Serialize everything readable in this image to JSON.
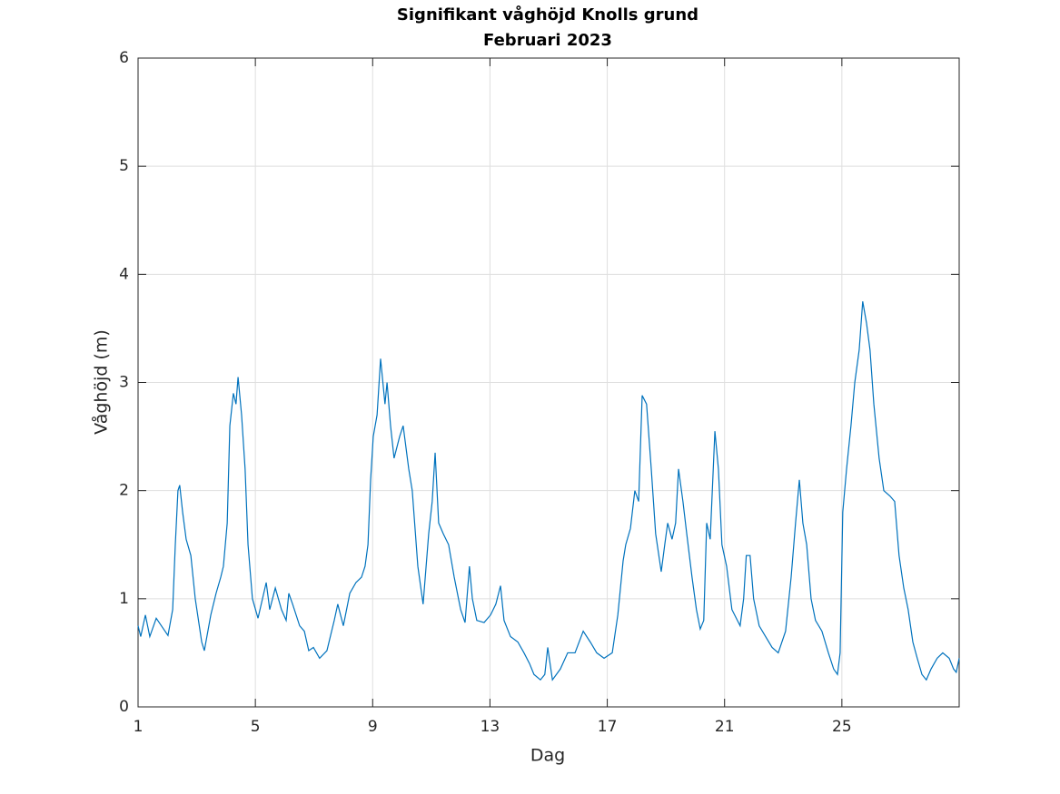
{
  "chart_data": {
    "type": "line",
    "title": "Signifikant våghöjd Knolls grund",
    "subtitle": "Februari 2023",
    "x_label": "Dag",
    "y_label": "Våghöjd (m)",
    "color": "#0072bd",
    "grid": true,
    "xlim": [
      1,
      29
    ],
    "xticks": [
      1,
      5,
      9,
      13,
      17,
      21,
      25
    ],
    "ylim": [
      0,
      6
    ],
    "yticks": [
      0,
      1,
      2,
      3,
      4,
      5,
      6
    ],
    "x": [
      1.0,
      1.09,
      1.25,
      1.4,
      1.62,
      1.87,
      2.02,
      2.18,
      2.27,
      2.36,
      2.42,
      2.52,
      2.64,
      2.8,
      2.95,
      3.17,
      3.26,
      3.48,
      3.66,
      3.82,
      3.91,
      4.04,
      4.13,
      4.25,
      4.34,
      4.41,
      4.53,
      4.65,
      4.75,
      4.9,
      5.09,
      5.37,
      5.49,
      5.68,
      5.89,
      6.05,
      6.14,
      6.27,
      6.51,
      6.67,
      6.82,
      6.98,
      7.19,
      7.44,
      7.69,
      7.81,
      8.0,
      8.22,
      8.43,
      8.62,
      8.74,
      8.84,
      8.93,
      9.02,
      9.15,
      9.27,
      9.42,
      9.49,
      9.61,
      9.73,
      9.92,
      10.04,
      10.23,
      10.35,
      10.54,
      10.72,
      10.91,
      11.03,
      11.13,
      11.25,
      11.41,
      11.59,
      11.78,
      12.0,
      12.15,
      12.3,
      12.4,
      12.55,
      12.8,
      13.02,
      13.2,
      13.36,
      13.48,
      13.7,
      13.95,
      14.16,
      14.35,
      14.5,
      14.72,
      14.87,
      14.97,
      15.13,
      15.4,
      15.65,
      15.9,
      16.18,
      16.42,
      16.64,
      16.89,
      17.17,
      17.36,
      17.54,
      17.63,
      17.79,
      17.94,
      18.07,
      18.19,
      18.34,
      18.5,
      18.65,
      18.84,
      18.96,
      19.06,
      19.21,
      19.33,
      19.43,
      19.58,
      19.71,
      19.89,
      20.04,
      20.17,
      20.29,
      20.39,
      20.51,
      20.67,
      20.79,
      20.91,
      21.07,
      21.25,
      21.53,
      21.65,
      21.74,
      21.87,
      21.99,
      22.18,
      22.4,
      22.62,
      22.83,
      23.08,
      23.27,
      23.42,
      23.55,
      23.67,
      23.8,
      23.95,
      24.1,
      24.32,
      24.54,
      24.72,
      24.85,
      24.94,
      25.03,
      25.16,
      25.31,
      25.44,
      25.59,
      25.71,
      25.84,
      25.96,
      26.09,
      26.27,
      26.43,
      26.64,
      26.8,
      26.95,
      27.11,
      27.26,
      27.42,
      27.57,
      27.73,
      27.88,
      28.04,
      28.25,
      28.44,
      28.66,
      28.81,
      28.9,
      29.0
    ],
    "values": [
      0.75,
      0.65,
      0.85,
      0.65,
      0.82,
      0.72,
      0.66,
      0.9,
      1.5,
      2.0,
      2.05,
      1.8,
      1.55,
      1.4,
      1.0,
      0.6,
      0.52,
      0.85,
      1.05,
      1.2,
      1.3,
      1.7,
      2.6,
      2.9,
      2.8,
      3.05,
      2.7,
      2.2,
      1.5,
      1.0,
      0.82,
      1.15,
      0.9,
      1.1,
      0.9,
      0.8,
      1.05,
      0.95,
      0.75,
      0.7,
      0.52,
      0.55,
      0.45,
      0.52,
      0.8,
      0.95,
      0.75,
      1.05,
      1.15,
      1.2,
      1.3,
      1.5,
      2.1,
      2.5,
      2.7,
      3.22,
      2.8,
      3.0,
      2.6,
      2.3,
      2.5,
      2.6,
      2.2,
      2.0,
      1.3,
      0.95,
      1.6,
      1.9,
      2.35,
      1.7,
      1.6,
      1.5,
      1.2,
      0.9,
      0.78,
      1.3,
      1.0,
      0.8,
      0.78,
      0.85,
      0.95,
      1.12,
      0.8,
      0.65,
      0.6,
      0.5,
      0.4,
      0.3,
      0.25,
      0.3,
      0.55,
      0.25,
      0.35,
      0.5,
      0.5,
      0.7,
      0.6,
      0.5,
      0.45,
      0.5,
      0.85,
      1.35,
      1.5,
      1.65,
      2.0,
      1.9,
      2.88,
      2.8,
      2.2,
      1.6,
      1.25,
      1.5,
      1.7,
      1.55,
      1.7,
      2.2,
      1.9,
      1.6,
      1.2,
      0.9,
      0.72,
      0.8,
      1.7,
      1.55,
      2.55,
      2.2,
      1.5,
      1.3,
      0.9,
      0.75,
      1.0,
      1.4,
      1.4,
      1.0,
      0.75,
      0.65,
      0.55,
      0.5,
      0.7,
      1.2,
      1.7,
      2.1,
      1.7,
      1.5,
      1.0,
      0.8,
      0.7,
      0.5,
      0.35,
      0.3,
      0.5,
      1.8,
      2.2,
      2.6,
      3.0,
      3.3,
      3.75,
      3.55,
      3.3,
      2.8,
      2.3,
      2.0,
      1.95,
      1.9,
      1.4,
      1.1,
      0.9,
      0.6,
      0.45,
      0.3,
      0.25,
      0.35,
      0.45,
      0.5,
      0.45,
      0.35,
      0.32,
      0.45
    ]
  }
}
